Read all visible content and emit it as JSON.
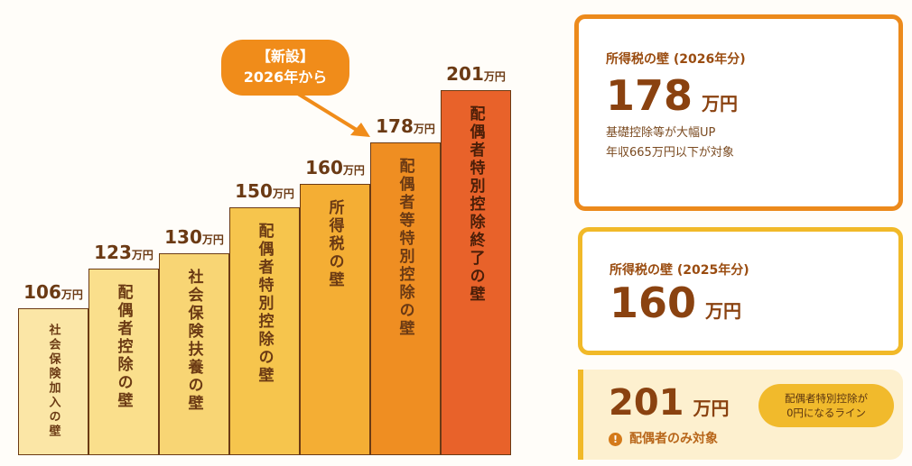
{
  "chart_data": {
    "type": "bar",
    "title": "",
    "categories": [
      "社会保険加入の壁",
      "配偶者控除の壁",
      "社会保険扶養の壁",
      "配偶者特別控除の壁",
      "所得税の壁",
      "配偶者等特別控除の壁",
      "配偶者特別控除終了の壁"
    ],
    "values": [
      106,
      123,
      130,
      150,
      160,
      178,
      201
    ],
    "value_labels": [
      "106",
      "123",
      "130",
      "150",
      "160",
      "178",
      "201"
    ],
    "unit": "万円",
    "colors": [
      "#fbe6a6",
      "#fadf8c",
      "#f8d574",
      "#f6c54d",
      "#f4ae34",
      "#ef8e22",
      "#e8622a"
    ],
    "ylim": [
      42,
      210
    ],
    "annotation": {
      "line1": "【新設】",
      "line2": "2026年から",
      "target": "配偶者等特別控除の壁"
    }
  },
  "cards": {
    "c1": {
      "title": "所得税の壁 (2026年分)",
      "value": "178",
      "unit": "万円",
      "line1": "基礎控除等が大幅UP",
      "line2": "年収665万円以下が対象"
    },
    "c2": {
      "title": "所得税の壁 (2025年分)",
      "value": "160",
      "unit": "万円"
    },
    "c3": {
      "value": "201",
      "unit": "万円",
      "note": "配偶者のみ対象",
      "pill1": "配偶者特別控除が",
      "pill2": "0円になるライン",
      "icon": "!"
    }
  }
}
